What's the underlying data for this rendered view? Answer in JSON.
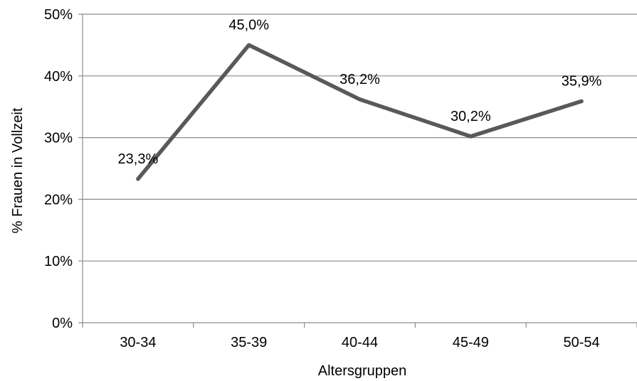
{
  "chart_data": {
    "type": "line",
    "categories": [
      "30-34",
      "35-39",
      "40-44",
      "45-49",
      "50-54"
    ],
    "series": [
      {
        "values": [
          23.3,
          45.0,
          36.2,
          30.2,
          35.9
        ],
        "data_labels": [
          "23,3%",
          "45,0%",
          "36,2%",
          "30,2%",
          "35,9%"
        ]
      }
    ],
    "xlabel": "Altersgruppen",
    "ylabel": "% Frauen in Vollzeit",
    "ylim": [
      0,
      50
    ],
    "yticks": [
      0,
      10,
      20,
      30,
      40,
      50
    ],
    "ytick_labels": [
      "0%",
      "10%",
      "20%",
      "30%",
      "40%",
      "50%"
    ],
    "grid": "horizontal",
    "legend": "none",
    "colors": {
      "line": "#595959",
      "grid": "#8c8c8c",
      "axis": "#8c8c8c",
      "text": "#000000"
    }
  }
}
